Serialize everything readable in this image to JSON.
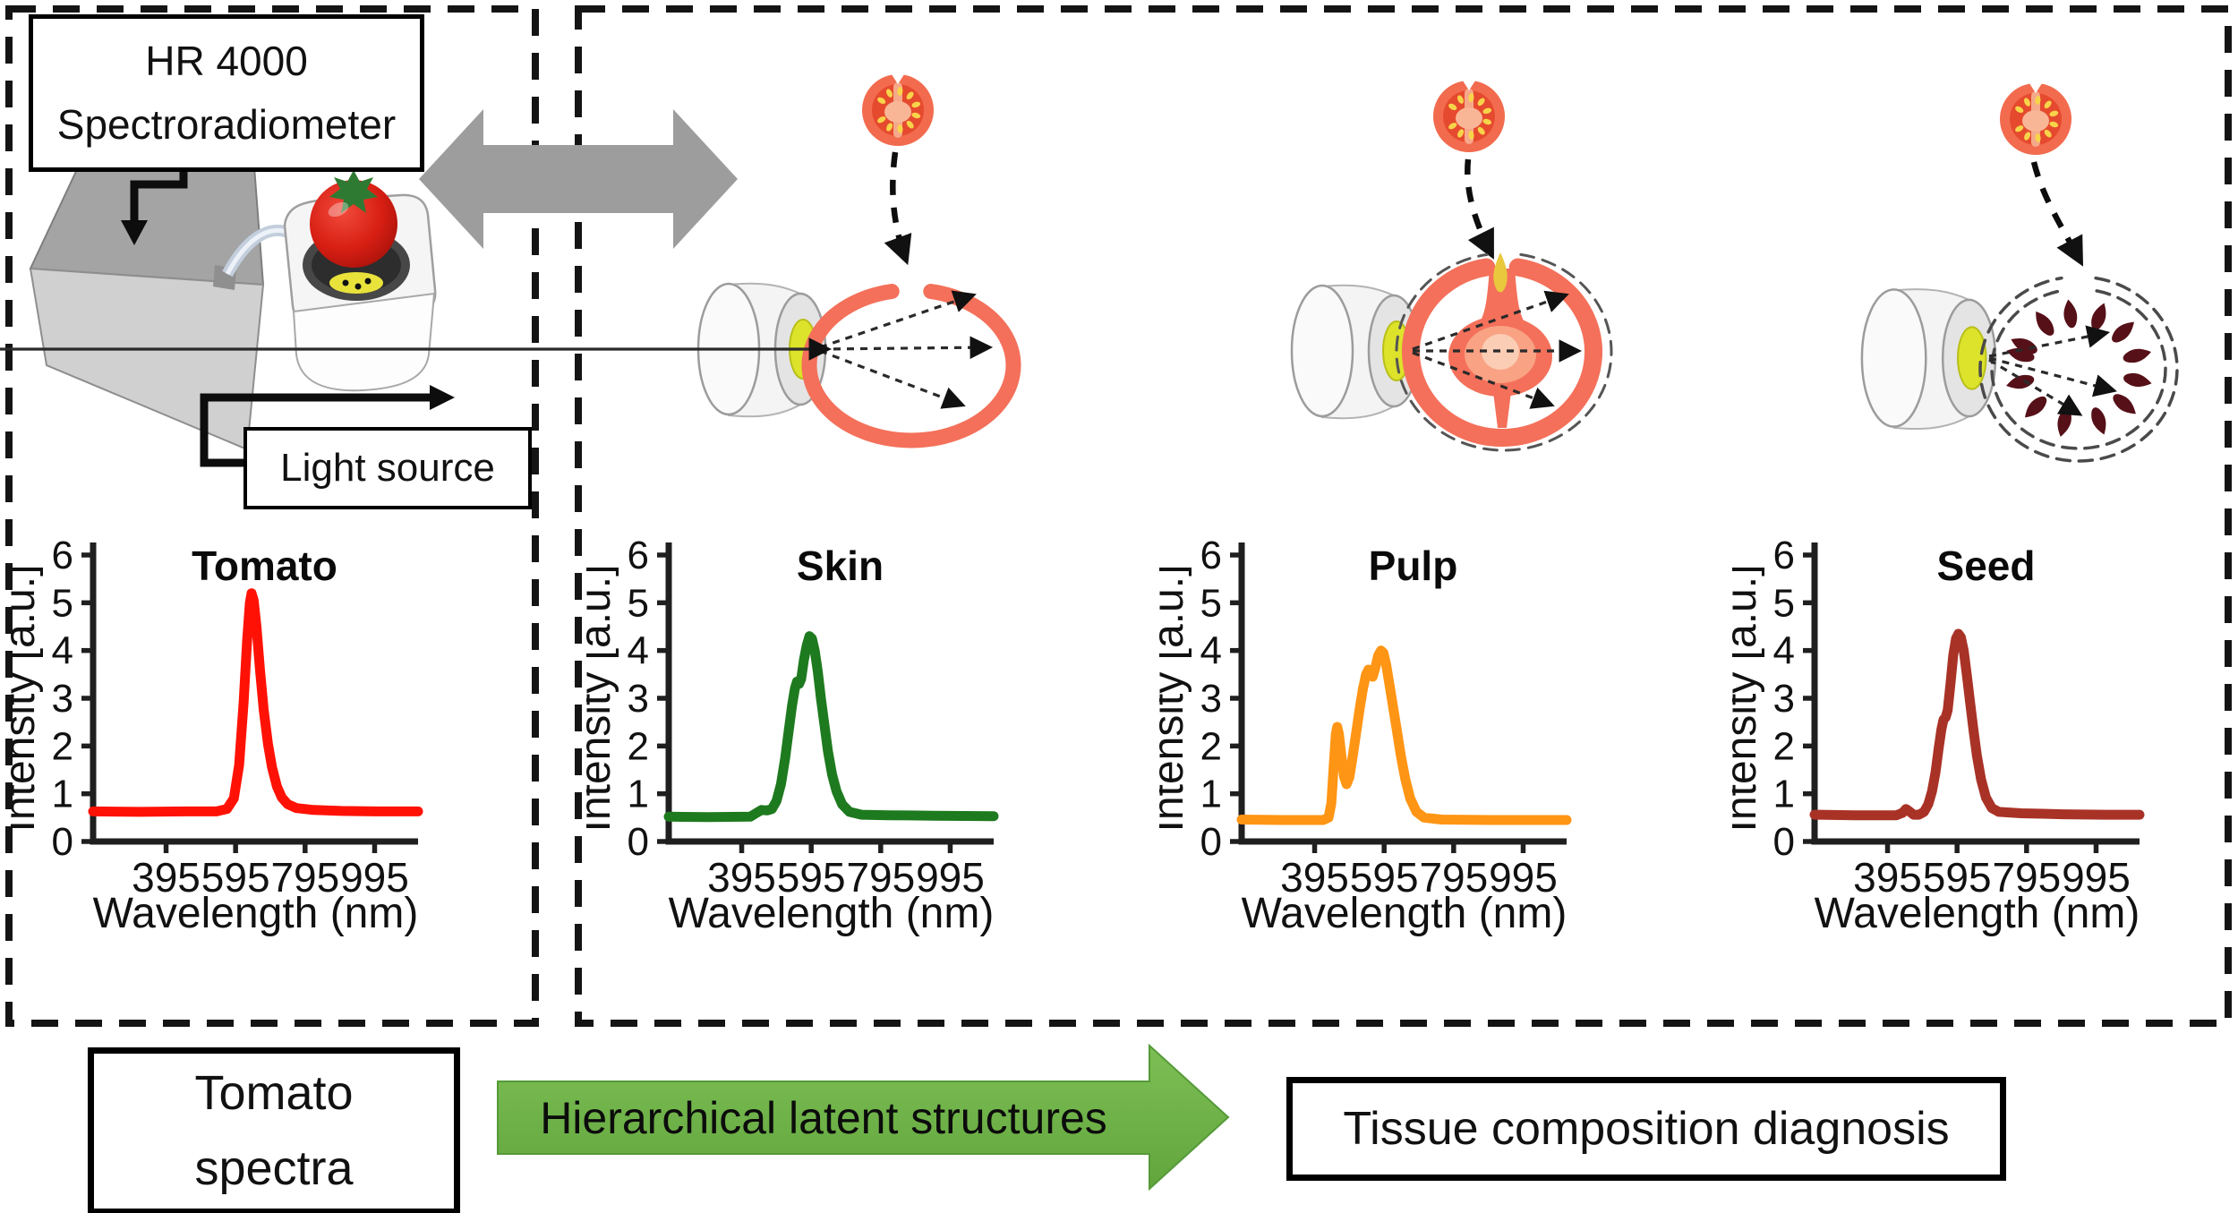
{
  "left_panel": {
    "spectrometer_label_line1": "HR 4000",
    "spectrometer_label_line2": "Spectroradiometer",
    "light_source_label": "Light source"
  },
  "right_panel": {
    "sections": [
      "Skin",
      "Pulp",
      "Seed"
    ]
  },
  "bottom_flow": {
    "source_line1": "Tomato",
    "source_line2": "spectra",
    "process_label": "Hierarchical latent structures",
    "result_label": "Tissue composition diagnosis"
  },
  "colors": {
    "tomato_line": "#ff1205",
    "skin_line": "#1e7a1e",
    "pulp_line": "#ff9514",
    "seed_line": "#a93226",
    "salmon": "#f4705a",
    "salmon_mid": "#f9a284",
    "salmon_pale": "#fbcdb4",
    "green_arrow": "#6cb044",
    "gray_arrow": "#9d9d9d",
    "lens_yellow": "#dde22b",
    "seed_glyph": "#561018"
  },
  "chart_data": [
    {
      "id": "tomato",
      "type": "line",
      "title": "Tomato",
      "color": "#ff1205",
      "xlabel": "Wavelength (nm)",
      "ylabel": "Intensity [a.u.]",
      "xlim": [
        185,
        1120
      ],
      "ylim": [
        0,
        6
      ],
      "xticks": [
        395,
        595,
        795,
        995
      ],
      "yticks": [
        0,
        1,
        2,
        3,
        4,
        5,
        6
      ],
      "grid": false,
      "legend": "none",
      "points": [
        [
          185,
          0.63
        ],
        [
          320,
          0.62
        ],
        [
          450,
          0.63
        ],
        [
          540,
          0.63
        ],
        [
          570,
          0.68
        ],
        [
          590,
          0.9
        ],
        [
          605,
          1.6
        ],
        [
          618,
          2.9
        ],
        [
          628,
          4.2
        ],
        [
          636,
          5.0
        ],
        [
          641,
          5.2
        ],
        [
          647,
          5.05
        ],
        [
          655,
          4.5
        ],
        [
          665,
          3.6
        ],
        [
          676,
          2.75
        ],
        [
          688,
          2.05
        ],
        [
          700,
          1.55
        ],
        [
          714,
          1.15
        ],
        [
          728,
          0.92
        ],
        [
          745,
          0.78
        ],
        [
          770,
          0.7
        ],
        [
          820,
          0.66
        ],
        [
          900,
          0.64
        ],
        [
          1000,
          0.63
        ],
        [
          1120,
          0.63
        ]
      ]
    },
    {
      "id": "skin",
      "type": "line",
      "title": "Skin",
      "color": "#1e7a1e",
      "xlabel": "Wavelength (nm)",
      "ylabel": "Intensity [a.u.]",
      "xlim": [
        185,
        1120
      ],
      "ylim": [
        0,
        6
      ],
      "xticks": [
        395,
        595,
        795,
        995
      ],
      "yticks": [
        0,
        1,
        2,
        3,
        4,
        5,
        6
      ],
      "grid": false,
      "legend": "none",
      "points": [
        [
          185,
          0.52
        ],
        [
          300,
          0.51
        ],
        [
          420,
          0.52
        ],
        [
          438,
          0.6
        ],
        [
          452,
          0.66
        ],
        [
          468,
          0.65
        ],
        [
          482,
          0.68
        ],
        [
          495,
          0.85
        ],
        [
          508,
          1.2
        ],
        [
          520,
          1.75
        ],
        [
          530,
          2.3
        ],
        [
          540,
          2.85
        ],
        [
          548,
          3.2
        ],
        [
          554,
          3.35
        ],
        [
          560,
          3.3
        ],
        [
          566,
          3.4
        ],
        [
          574,
          3.8
        ],
        [
          582,
          4.1
        ],
        [
          590,
          4.3
        ],
        [
          597,
          4.25
        ],
        [
          605,
          4.0
        ],
        [
          614,
          3.55
        ],
        [
          623,
          3.0
        ],
        [
          633,
          2.45
        ],
        [
          643,
          1.9
        ],
        [
          655,
          1.4
        ],
        [
          668,
          1.05
        ],
        [
          684,
          0.78
        ],
        [
          705,
          0.62
        ],
        [
          740,
          0.56
        ],
        [
          820,
          0.55
        ],
        [
          950,
          0.54
        ],
        [
          1120,
          0.53
        ]
      ]
    },
    {
      "id": "pulp",
      "type": "line",
      "title": "Pulp",
      "color": "#ff9514",
      "xlabel": "Wavelength (nm)",
      "ylabel": "Intensity [a.u.]",
      "xlim": [
        185,
        1120
      ],
      "ylim": [
        0,
        6
      ],
      "xticks": [
        395,
        595,
        795,
        995
      ],
      "yticks": [
        0,
        1,
        2,
        3,
        4,
        5,
        6
      ],
      "grid": false,
      "legend": "none",
      "points": [
        [
          185,
          0.46
        ],
        [
          300,
          0.45
        ],
        [
          420,
          0.45
        ],
        [
          435,
          0.5
        ],
        [
          443,
          0.8
        ],
        [
          450,
          1.6
        ],
        [
          456,
          2.25
        ],
        [
          460,
          2.4
        ],
        [
          465,
          2.25
        ],
        [
          472,
          1.8
        ],
        [
          480,
          1.35
        ],
        [
          487,
          1.2
        ],
        [
          495,
          1.35
        ],
        [
          505,
          1.8
        ],
        [
          515,
          2.3
        ],
        [
          525,
          2.8
        ],
        [
          534,
          3.2
        ],
        [
          543,
          3.5
        ],
        [
          550,
          3.6
        ],
        [
          556,
          3.5
        ],
        [
          562,
          3.45
        ],
        [
          570,
          3.65
        ],
        [
          578,
          3.9
        ],
        [
          586,
          4.0
        ],
        [
          593,
          3.95
        ],
        [
          601,
          3.7
        ],
        [
          610,
          3.3
        ],
        [
          620,
          2.85
        ],
        [
          631,
          2.35
        ],
        [
          643,
          1.8
        ],
        [
          656,
          1.3
        ],
        [
          670,
          0.9
        ],
        [
          688,
          0.62
        ],
        [
          710,
          0.5
        ],
        [
          760,
          0.46
        ],
        [
          900,
          0.45
        ],
        [
          1120,
          0.45
        ]
      ]
    },
    {
      "id": "seed",
      "type": "line",
      "title": "Seed",
      "color": "#a93226",
      "xlabel": "Wavelength (nm)",
      "ylabel": "Intensity [a.u.]",
      "xlim": [
        185,
        1120
      ],
      "ylim": [
        0,
        6
      ],
      "xticks": [
        395,
        595,
        795,
        995
      ],
      "yticks": [
        0,
        1,
        2,
        3,
        4,
        5,
        6
      ],
      "grid": false,
      "legend": "none",
      "points": [
        [
          185,
          0.56
        ],
        [
          300,
          0.55
        ],
        [
          420,
          0.55
        ],
        [
          438,
          0.6
        ],
        [
          448,
          0.68
        ],
        [
          458,
          0.63
        ],
        [
          470,
          0.56
        ],
        [
          485,
          0.56
        ],
        [
          500,
          0.62
        ],
        [
          512,
          0.78
        ],
        [
          523,
          1.05
        ],
        [
          533,
          1.45
        ],
        [
          542,
          1.95
        ],
        [
          550,
          2.35
        ],
        [
          556,
          2.55
        ],
        [
          562,
          2.6
        ],
        [
          568,
          2.75
        ],
        [
          576,
          3.3
        ],
        [
          584,
          3.9
        ],
        [
          592,
          4.25
        ],
        [
          599,
          4.35
        ],
        [
          606,
          4.28
        ],
        [
          614,
          4.0
        ],
        [
          623,
          3.5
        ],
        [
          632,
          2.95
        ],
        [
          642,
          2.35
        ],
        [
          652,
          1.8
        ],
        [
          664,
          1.3
        ],
        [
          678,
          0.92
        ],
        [
          695,
          0.7
        ],
        [
          715,
          0.62
        ],
        [
          780,
          0.59
        ],
        [
          900,
          0.57
        ],
        [
          1020,
          0.56
        ],
        [
          1120,
          0.56
        ]
      ]
    }
  ]
}
